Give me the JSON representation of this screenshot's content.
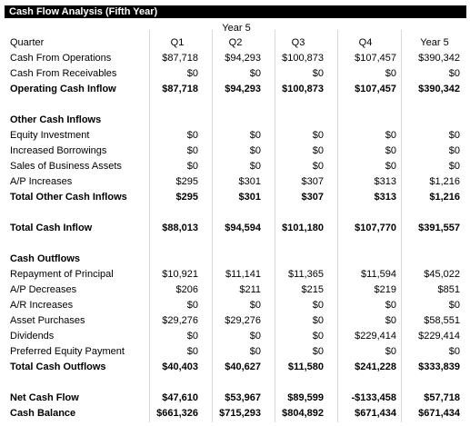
{
  "title": "Cash Flow Analysis (Fifth Year)",
  "year_label": "Year 5",
  "header": {
    "label": "Quarter",
    "cols": [
      "Q1",
      "Q2",
      "Q3",
      "Q4",
      "Year 5"
    ]
  },
  "rows": [
    {
      "label": "Cash From Operations",
      "values": [
        "$87,718",
        "$94,293",
        "$100,873",
        "$107,457",
        "$390,342"
      ]
    },
    {
      "label": "Cash From Receivables",
      "values": [
        "$0",
        "$0",
        "$0",
        "$0",
        "$0"
      ]
    },
    {
      "label": "Operating Cash Inflow",
      "values": [
        "$87,718",
        "$94,293",
        "$100,873",
        "$107,457",
        "$390,342"
      ]
    },
    {
      "label": "Other Cash Inflows",
      "values": []
    },
    {
      "label": "Equity Investment",
      "values": [
        "$0",
        "$0",
        "$0",
        "$0",
        "$0"
      ]
    },
    {
      "label": "Increased Borrowings",
      "values": [
        "$0",
        "$0",
        "$0",
        "$0",
        "$0"
      ]
    },
    {
      "label": "Sales of Business Assets",
      "values": [
        "$0",
        "$0",
        "$0",
        "$0",
        "$0"
      ]
    },
    {
      "label": "A/P Increases",
      "values": [
        "$295",
        "$301",
        "$307",
        "$313",
        "$1,216"
      ]
    },
    {
      "label": "Total Other Cash Inflows",
      "values": [
        "$295",
        "$301",
        "$307",
        "$313",
        "$1,216"
      ]
    },
    {
      "label": "Total Cash Inflow",
      "values": [
        "$88,013",
        "$94,594",
        "$101,180",
        "$107,770",
        "$391,557"
      ]
    },
    {
      "label": "Cash Outflows",
      "values": []
    },
    {
      "label": "Repayment of Principal",
      "values": [
        "$10,921",
        "$11,141",
        "$11,365",
        "$11,594",
        "$45,022"
      ]
    },
    {
      "label": "A/P Decreases",
      "values": [
        "$206",
        "$211",
        "$215",
        "$219",
        "$851"
      ]
    },
    {
      "label": "A/R Increases",
      "values": [
        "$0",
        "$0",
        "$0",
        "$0",
        "$0"
      ]
    },
    {
      "label": "Asset Purchases",
      "values": [
        "$29,276",
        "$29,276",
        "$0",
        "$0",
        "$58,551"
      ]
    },
    {
      "label": "Dividends",
      "values": [
        "$0",
        "$0",
        "$0",
        "$229,414",
        "$229,414"
      ]
    },
    {
      "label": "Preferred Equity Payment",
      "values": [
        "$0",
        "$0",
        "$0",
        "$0",
        "$0"
      ]
    },
    {
      "label": "Total Cash Outflows",
      "values": [
        "$40,403",
        "$40,627",
        "$11,580",
        "$241,228",
        "$333,839"
      ]
    },
    {
      "label": "Net Cash Flow",
      "values": [
        "$47,610",
        "$53,967",
        "$89,599",
        "-$133,458",
        "$57,718"
      ]
    },
    {
      "label": "Cash Balance",
      "values": [
        "$661,326",
        "$715,293",
        "$804,892",
        "$671,434",
        "$671,434"
      ]
    }
  ]
}
